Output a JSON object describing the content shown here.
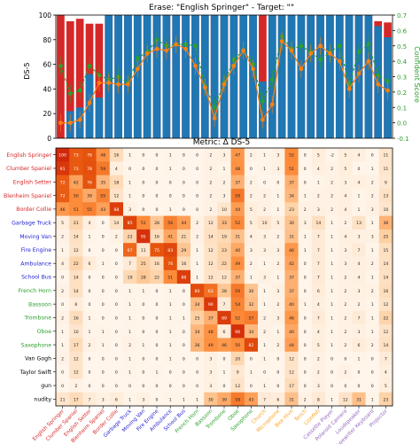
{
  "chart_data": [
    {
      "type": "bar",
      "title": "Erase: \"English Springer\" - Target: \"\"",
      "ylabel": "DS-5",
      "ylabel_right": "Confident Score",
      "ylim": [
        0,
        100
      ],
      "yticks": [
        "0",
        "20",
        "40",
        "60",
        "80",
        "100"
      ],
      "ylim_right": [
        -0.1,
        0.7
      ],
      "yticks_right": [
        "-0.1",
        "0.0",
        "0.1",
        "0.2",
        "0.3",
        "0.4",
        "0.5",
        "0.6",
        "0.7"
      ],
      "bar_red_total": [
        100,
        95,
        97,
        93,
        93,
        100,
        100,
        100,
        100,
        100,
        100,
        100,
        100,
        100,
        100,
        100,
        100,
        100,
        100,
        100,
        100,
        100,
        100,
        100,
        100,
        100,
        100,
        100,
        100,
        100,
        100,
        100,
        100,
        95,
        94
      ],
      "bar_blue": [
        0,
        22,
        25,
        52,
        33,
        100,
        100,
        100,
        100,
        100,
        100,
        100,
        100,
        100,
        100,
        100,
        100,
        100,
        100,
        100,
        100,
        46,
        100,
        100,
        100,
        100,
        100,
        100,
        100,
        100,
        100,
        100,
        100,
        91,
        82
      ],
      "green_line": [
        0.37,
        0.19,
        0.21,
        0.37,
        0.31,
        0.28,
        0.3,
        0.26,
        0.42,
        0.46,
        0.54,
        0.5,
        0.51,
        0.51,
        0.5,
        0.24,
        0.1,
        0.26,
        0.41,
        0.47,
        0.38,
        0.14,
        0.28,
        0.56,
        0.48,
        0.5,
        0.46,
        0.41,
        0.46,
        0.5,
        0.25,
        0.46,
        0.51,
        0.31,
        0.27
      ],
      "orange_line": [
        0.0,
        0.0,
        0.02,
        0.13,
        0.26,
        0.26,
        0.25,
        0.25,
        0.35,
        0.45,
        0.48,
        0.47,
        0.51,
        0.48,
        0.37,
        0.23,
        0.03,
        0.25,
        0.37,
        0.47,
        0.35,
        0.02,
        0.12,
        0.53,
        0.47,
        0.35,
        0.45,
        0.5,
        0.45,
        0.4,
        0.22,
        0.32,
        0.4,
        0.25,
        0.21
      ]
    },
    {
      "type": "heatmap",
      "title": "Metric: Δ DS-5",
      "rows": [
        "English Springer",
        "Clumber Spaniel",
        "English Setter",
        "Blenheim Spaniel",
        "Border Collie",
        "Garbage Truck",
        "Moving Van",
        "Fire Engine",
        "Ambulance",
        "School Bus",
        "French Horn",
        "Bassoon",
        "Trombone",
        "Oboe",
        "Saxophone",
        "Van Gogh",
        "Taylor Swift",
        "gun",
        "nudity"
      ],
      "row_colors": [
        "#d62728",
        "#d62728",
        "#d62728",
        "#d62728",
        "#d62728",
        "#1f1fd0",
        "#1f1fd0",
        "#1f1fd0",
        "#1f1fd0",
        "#1f1fd0",
        "#2ca02c",
        "#2ca02c",
        "#2ca02c",
        "#2ca02c",
        "#2ca02c",
        "#000000",
        "#000000",
        "#000000",
        "#000000"
      ],
      "columns": [
        "English Springer",
        "Clumber Spaniel",
        "English Setter",
        "Blenheim Spaniel",
        "Border Collie",
        "Garbage Truck",
        "Moving Van",
        "Fire Engine",
        "Ambulance",
        "School Bus",
        "French Horn",
        "Bassoon",
        "Trombone",
        "Oboe",
        "Saxophone",
        "Church",
        "Microphone",
        "Bee Hive",
        "Tench",
        "Lionfish",
        "Cassette Player",
        "Polaroid Camera",
        "Loudspeaker",
        "Typewriter Keyboard",
        "Projector"
      ],
      "column_colors": [
        "#d62728",
        "#d62728",
        "#d62728",
        "#d62728",
        "#d62728",
        "#1f1fd0",
        "#1f1fd0",
        "#1f1fd0",
        "#1f1fd0",
        "#1f1fd0",
        "#2ca02c",
        "#2ca02c",
        "#2ca02c",
        "#2ca02c",
        "#2ca02c",
        "#ff9f1a",
        "#ff9f1a",
        "#ff9f1a",
        "#ff9f1a",
        "#ff9f1a",
        "#9467bd",
        "#9467bd",
        "#9467bd",
        "#9467bd",
        "#9467bd"
      ],
      "values": [
        [
          "100",
          "73",
          "76",
          "48",
          "16",
          "1",
          "0",
          "0",
          "1",
          "0",
          "0",
          "2",
          "3",
          "47",
          "2",
          "1",
          "3",
          "52",
          "0",
          "5",
          "-2",
          "5",
          "4",
          "0",
          "11"
        ],
        [
          "91",
          "73",
          "78",
          "59",
          "4",
          "0",
          "0",
          "0",
          "1",
          "0",
          "0",
          "2",
          "1",
          "48",
          "0",
          "1",
          "3",
          "51",
          "0",
          "4",
          "2",
          "5",
          "0",
          "1",
          "11"
        ],
        [
          "72",
          "42",
          "76",
          "35",
          "18",
          "1",
          "0",
          "0",
          "0",
          "0",
          "0",
          "2",
          "2",
          "37",
          "2",
          "0",
          "0",
          "37",
          "0",
          "1",
          "2",
          "3",
          "4",
          "2",
          "9"
        ],
        [
          "72",
          "50",
          "39",
          "55",
          "12",
          "1",
          "0",
          "0",
          "0",
          "0",
          "0",
          "2",
          "3",
          "59",
          "2",
          "2",
          "1",
          "34",
          "1",
          "2",
          "2",
          "4",
          "1",
          "2",
          "13"
        ],
        [
          "46",
          "51",
          "55",
          "43",
          "88",
          "3",
          "0",
          "0",
          "1",
          "0",
          "0",
          "2",
          "10",
          "44",
          "5",
          "2",
          "1",
          "23",
          "2",
          "3",
          "2",
          "4",
          "1",
          "3",
          "10"
        ],
        [
          "5",
          "21",
          "4",
          "0",
          "14",
          "85",
          "51",
          "28",
          "56",
          "44",
          "2",
          "12",
          "33",
          "52",
          "5",
          "10",
          "5",
          "30",
          "3",
          "14",
          "1",
          "2",
          "13",
          "1",
          "36"
        ],
        [
          "2",
          "14",
          "1",
          "0",
          "2",
          "22",
          "95",
          "16",
          "41",
          "21",
          "2",
          "14",
          "19",
          "31",
          "4",
          "3",
          "2",
          "31",
          "1",
          "7",
          "1",
          "4",
          "3",
          "3",
          "25"
        ],
        [
          "1",
          "12",
          "0",
          "0",
          "0",
          "67",
          "11",
          "75",
          "83",
          "29",
          "1",
          "12",
          "23",
          "40",
          "3",
          "3",
          "3",
          "46",
          "1",
          "7",
          "1",
          "3",
          "7",
          "1",
          "15"
        ],
        [
          "4",
          "22",
          "6",
          "1",
          "0",
          "7",
          "25",
          "16",
          "76",
          "16",
          "1",
          "12",
          "22",
          "49",
          "2",
          "1",
          "2",
          "42",
          "0",
          "7",
          "1",
          "3",
          "4",
          "2",
          "14"
        ],
        [
          "0",
          "14",
          "0",
          "0",
          "0",
          "19",
          "28",
          "22",
          "51",
          "88",
          "1",
          "12",
          "12",
          "37",
          "1",
          "3",
          "1",
          "37",
          "0",
          "7",
          "1",
          "2",
          "4",
          "1",
          "14"
        ],
        [
          "2",
          "14",
          "0",
          "0",
          "0",
          "1",
          "1",
          "0",
          "1",
          "0",
          "80",
          "63",
          "28",
          "59",
          "30",
          "1",
          "3",
          "37",
          "0",
          "6",
          "1",
          "2",
          "3",
          "2",
          "16"
        ],
        [
          "0",
          "6",
          "0",
          "0",
          "0",
          "1",
          "0",
          "0",
          "1",
          "0",
          "34",
          "90",
          "7",
          "54",
          "32",
          "1",
          "2",
          "40",
          "1",
          "4",
          "1",
          "2",
          "2",
          "1",
          "12"
        ],
        [
          "2",
          "16",
          "1",
          "0",
          "0",
          "1",
          "0",
          "0",
          "1",
          "1",
          "25",
          "37",
          "89",
          "52",
          "57",
          "2",
          "3",
          "46",
          "0",
          "7",
          "1",
          "2",
          "7",
          "1",
          "22"
        ],
        [
          "1",
          "10",
          "1",
          "1",
          "0",
          "1",
          "0",
          "0",
          "1",
          "0",
          "34",
          "48",
          "6",
          "96",
          "34",
          "2",
          "1",
          "40",
          "0",
          "4",
          "1",
          "2",
          "3",
          "1",
          "12"
        ],
        [
          "1",
          "17",
          "2",
          "1",
          "0",
          "2",
          "1",
          "0",
          "1",
          "0",
          "36",
          "49",
          "46",
          "50",
          "82",
          "1",
          "2",
          "44",
          "0",
          "5",
          "1",
          "2",
          "6",
          "2",
          "14"
        ],
        [
          "2",
          "12",
          "0",
          "0",
          "0",
          "1",
          "0",
          "0",
          "1",
          "0",
          "0",
          "3",
          "0",
          "20",
          "0",
          "1",
          "0",
          "12",
          "0",
          "2",
          "0",
          "0",
          "1",
          "0",
          "7"
        ],
        [
          "0",
          "12",
          "0",
          "0",
          "0",
          "1",
          "0",
          "1",
          "0",
          "0",
          "0",
          "3",
          "1",
          "9",
          "1",
          "0",
          "0",
          "12",
          "0",
          "2",
          "0",
          "2",
          "0",
          "0",
          "4"
        ],
        [
          "0",
          "2",
          "0",
          "0",
          "0",
          "0",
          "0",
          "0",
          "0",
          "0",
          "0",
          "3",
          "0",
          "12",
          "0",
          "1",
          "0",
          "17",
          "0",
          "3",
          "0",
          "0",
          "0",
          "0",
          "5"
        ],
        [
          "11",
          "17",
          "7",
          "3",
          "6",
          "1",
          "3",
          "0",
          "1",
          "1",
          "1",
          "30",
          "39",
          "58",
          "43",
          "7",
          "6",
          "31",
          "2",
          "8",
          "1",
          "12",
          "31",
          "1",
          "23"
        ]
      ]
    }
  ],
  "colors": {
    "bar_red": "#d62728",
    "bar_blue": "#1f77b4",
    "line_green": "#2ca02c",
    "line_orange": "#ff7f0e"
  }
}
